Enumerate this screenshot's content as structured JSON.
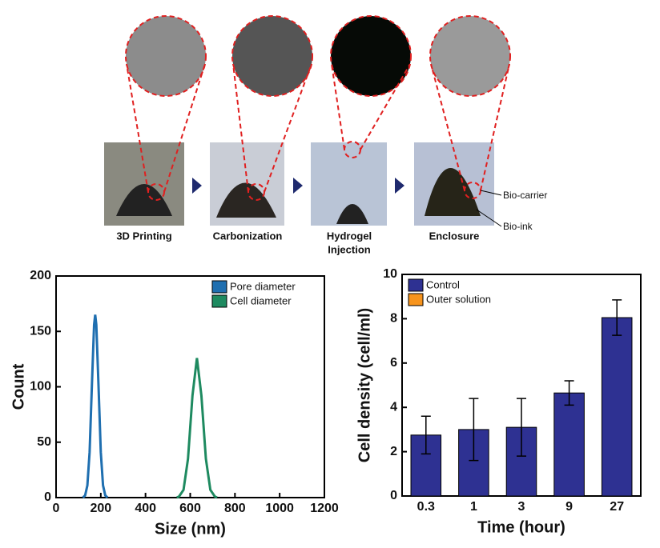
{
  "diagram": {
    "steps": [
      {
        "lines": [
          "3D Printing"
        ]
      },
      {
        "lines": [
          "Carbonization"
        ]
      },
      {
        "lines": [
          "Hydrogel",
          "Injection"
        ]
      },
      {
        "lines": [
          "Enclosure"
        ]
      }
    ],
    "annotations": [
      "Bio-carrier",
      "Bio-ink"
    ]
  },
  "chart_data": [
    {
      "type": "line",
      "xlabel": "Size (nm)",
      "ylabel": "Count",
      "xlim": [
        0,
        1200
      ],
      "xticks": [
        0,
        200,
        400,
        600,
        800,
        1000,
        1200
      ],
      "ylim": [
        0,
        200
      ],
      "yticks": [
        0,
        50,
        100,
        150,
        200
      ],
      "legend": "upper right",
      "series": [
        {
          "name": "Pore diameter",
          "color": "#1f6fb0",
          "x": [
            120,
            130,
            140,
            150,
            160,
            170,
            175,
            180,
            190,
            200,
            210,
            220,
            230
          ],
          "values": [
            0,
            2,
            11,
            41,
            100,
            156,
            165,
            156,
            100,
            41,
            11,
            2,
            0
          ]
        },
        {
          "name": "Cell diameter",
          "color": "#1e8a60",
          "x": [
            540,
            550,
            570,
            590,
            610,
            630,
            650,
            670,
            690,
            710,
            720
          ],
          "values": [
            0,
            1,
            7,
            35,
            92,
            126,
            92,
            35,
            7,
            1,
            0
          ]
        }
      ]
    },
    {
      "type": "bar",
      "xlabel": "Time (hour)",
      "ylabel": "Cell density (cell/ml)",
      "categories": [
        "0.3",
        "1",
        "3",
        "9",
        "27"
      ],
      "ylim": [
        0,
        10
      ],
      "yticks": [
        0,
        2,
        4,
        6,
        8,
        10
      ],
      "legend": "upper left",
      "series": [
        {
          "name": "Control",
          "color": "#2e3192",
          "values": [
            2.75,
            3.0,
            3.1,
            4.65,
            8.05
          ],
          "errors": [
            0.85,
            1.4,
            1.3,
            0.55,
            0.8
          ]
        },
        {
          "name": "Outer solution",
          "color": "#f7941d",
          "values": [
            0,
            0,
            0,
            0,
            0
          ]
        }
      ]
    }
  ]
}
